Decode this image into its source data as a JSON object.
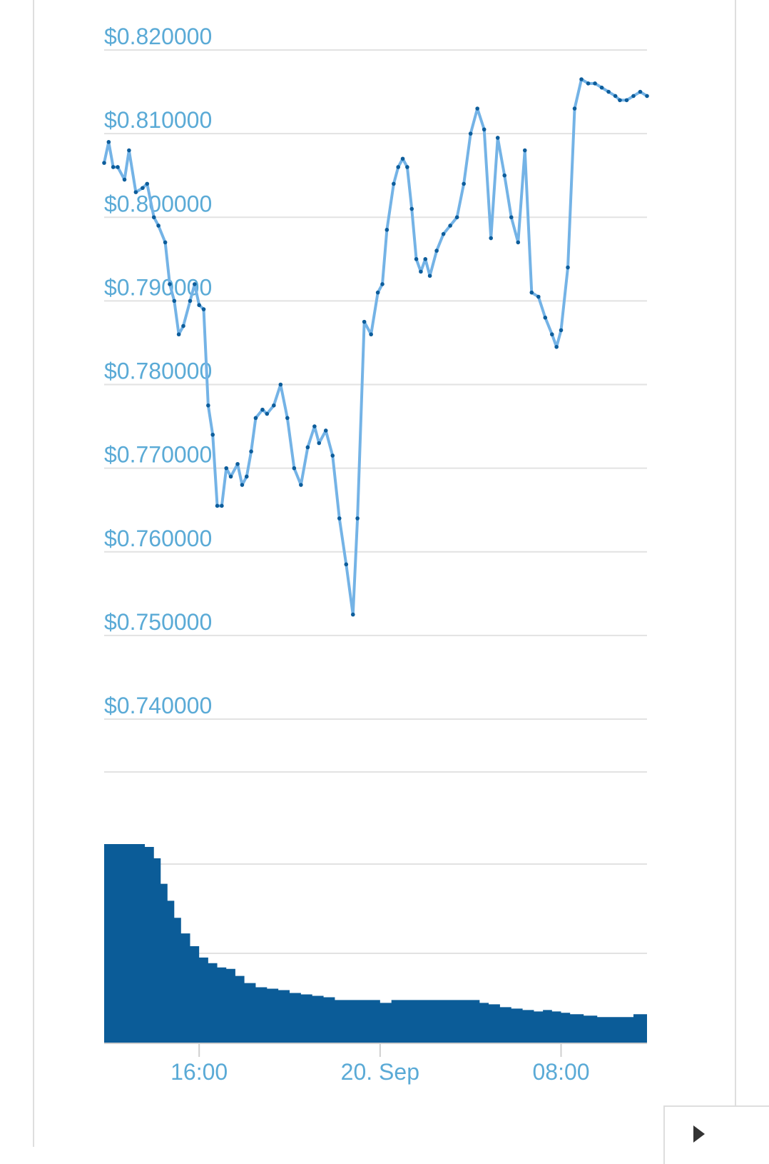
{
  "colors": {
    "price_line": "#74b3e6",
    "price_dot": "#0d5d9b",
    "volume_fill": "#0b5c98",
    "tick_text": "#5aaad6",
    "grid": "#e2e2e2"
  },
  "icons": {
    "corner": "chevron-right-icon"
  },
  "chart_data": [
    {
      "type": "line",
      "title": "",
      "xlabel": "",
      "ylabel": "",
      "x_axis": "time",
      "ylim": [
        0.735,
        0.8235
      ],
      "y_ticks": [
        "$0.820000",
        "$0.810000",
        "$0.800000",
        "$0.790000",
        "$0.780000",
        "$0.770000",
        "$0.760000",
        "$0.750000",
        "$0.740000"
      ],
      "y_tick_values": [
        0.82,
        0.81,
        0.8,
        0.79,
        0.78,
        0.77,
        0.76,
        0.75,
        0.74
      ],
      "x_ticks": [
        "16:00",
        "20. Sep",
        "08:00"
      ],
      "x_tick_values": [
        16,
        24,
        32
      ],
      "xlim": [
        11.8,
        35.8
      ],
      "grid": true,
      "series": [
        {
          "markers": true,
          "x": [
            11.8,
            12.0,
            12.2,
            12.4,
            12.7,
            12.9,
            13.2,
            13.5,
            13.7,
            14.0,
            14.2,
            14.5,
            14.7,
            14.9,
            15.1,
            15.3,
            15.6,
            15.8,
            16.0,
            16.2,
            16.4,
            16.6,
            16.8,
            17.0,
            17.2,
            17.4,
            17.7,
            17.9,
            18.1,
            18.3,
            18.5,
            18.8,
            19.0,
            19.3,
            19.6,
            19.9,
            20.2,
            20.5,
            20.8,
            21.1,
            21.3,
            21.6,
            21.9,
            22.2,
            22.5,
            22.8,
            23.0,
            23.3,
            23.6,
            23.9,
            24.1,
            24.3,
            24.6,
            24.8,
            25.0,
            25.2,
            25.4,
            25.6,
            25.8,
            26.0,
            26.2,
            26.5,
            26.8,
            27.1,
            27.4,
            27.7,
            28.0,
            28.3,
            28.6,
            28.9,
            29.2,
            29.5,
            29.8,
            30.1,
            30.4,
            30.7,
            31.0,
            31.3,
            31.6,
            31.8,
            32.0,
            32.3,
            32.6,
            32.9,
            33.2,
            33.5,
            33.8,
            34.1,
            34.4,
            34.6,
            34.9,
            35.2,
            35.5,
            35.8
          ],
          "y": [
            0.8065,
            0.809,
            0.806,
            0.806,
            0.8045,
            0.808,
            0.803,
            0.8035,
            0.804,
            0.8,
            0.799,
            0.797,
            0.792,
            0.79,
            0.786,
            0.787,
            0.79,
            0.792,
            0.7895,
            0.789,
            0.7775,
            0.774,
            0.7655,
            0.7655,
            0.77,
            0.769,
            0.7705,
            0.768,
            0.769,
            0.772,
            0.776,
            0.777,
            0.7765,
            0.7775,
            0.78,
            0.776,
            0.77,
            0.768,
            0.7725,
            0.775,
            0.773,
            0.7745,
            0.7715,
            0.764,
            0.7585,
            0.7525,
            0.764,
            0.7875,
            0.786,
            0.791,
            0.792,
            0.7985,
            0.804,
            0.806,
            0.807,
            0.806,
            0.801,
            0.795,
            0.7935,
            0.795,
            0.793,
            0.796,
            0.798,
            0.799,
            0.8,
            0.804,
            0.81,
            0.813,
            0.8105,
            0.7975,
            0.8095,
            0.805,
            0.8,
            0.797,
            0.808,
            0.791,
            0.7905,
            0.788,
            0.786,
            0.7845,
            0.7865,
            0.794,
            0.813,
            0.8165,
            0.816,
            0.816,
            0.8155,
            0.815,
            0.8145,
            0.814,
            0.814,
            0.8145,
            0.815,
            0.8145
          ]
        }
      ]
    },
    {
      "type": "area",
      "title": "",
      "xlabel": "",
      "ylabel": "",
      "x_axis": "time",
      "xlim": [
        11.8,
        35.8
      ],
      "ylim": [
        0,
        140
      ],
      "grid": true,
      "series": [
        {
          "x": [
            11.8,
            12.5,
            13.2,
            13.6,
            14.0,
            14.3,
            14.6,
            14.9,
            15.2,
            15.6,
            16.0,
            16.4,
            16.8,
            17.2,
            17.6,
            18.0,
            18.5,
            19.0,
            19.5,
            20.0,
            20.5,
            21.0,
            21.5,
            22.0,
            22.5,
            22.9,
            23.0,
            23.2,
            23.5,
            24.0,
            24.5,
            25.0,
            25.5,
            26.0,
            26.5,
            27.0,
            27.5,
            28.0,
            28.4,
            28.8,
            29.3,
            29.4,
            29.8,
            30.3,
            30.8,
            31.2,
            31.6,
            32.0,
            32.4,
            33.0,
            33.6,
            34.2,
            34.8,
            35.2,
            35.8
          ],
          "y": [
            140,
            140,
            140,
            138,
            130,
            112,
            100,
            88,
            77,
            68,
            60,
            56,
            53,
            52,
            47,
            42,
            39,
            38,
            37,
            35,
            34,
            33,
            32,
            30,
            30,
            30,
            30,
            30,
            30,
            28,
            30,
            30,
            30,
            30,
            30,
            30,
            30,
            30,
            28,
            27,
            25,
            25,
            24,
            23,
            22,
            23,
            22,
            21,
            20,
            19,
            18,
            18,
            18,
            20,
            22
          ]
        }
      ]
    }
  ]
}
